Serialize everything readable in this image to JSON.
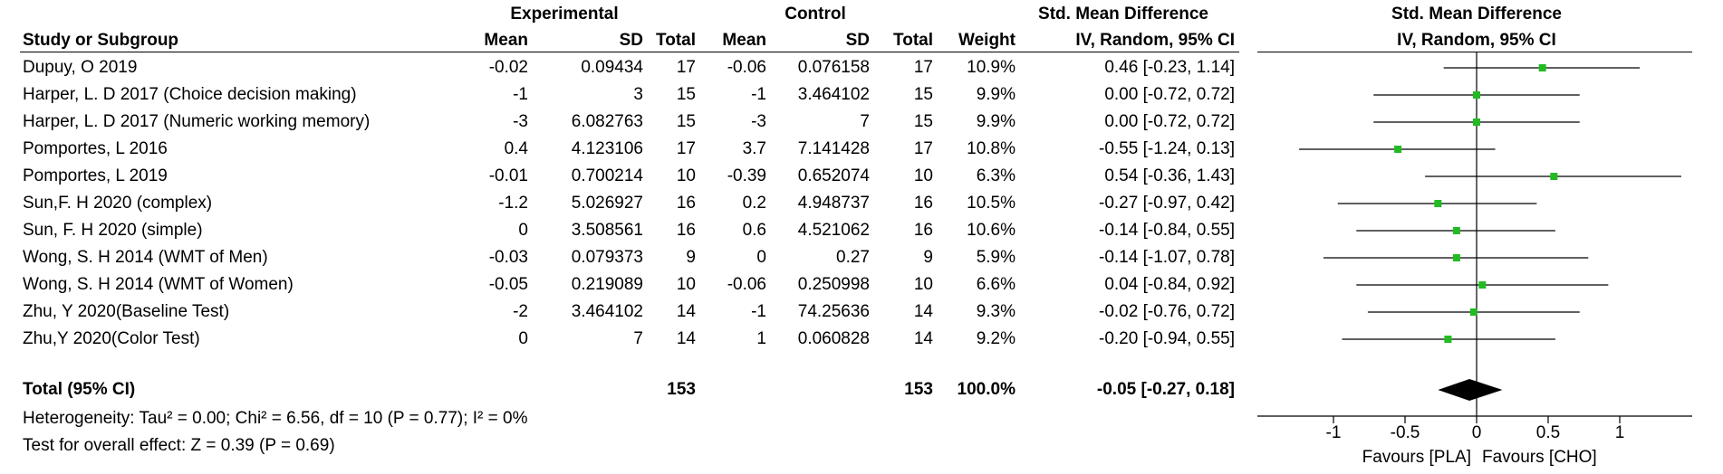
{
  "header": {
    "group_experimental": "Experimental",
    "group_control": "Control",
    "smd_title_left": "Std. Mean Difference",
    "smd_title_right": "Std. Mean Difference",
    "col_study": "Study or Subgroup",
    "col_exp_mean": "Mean",
    "col_exp_sd": "SD",
    "col_exp_total": "Total",
    "col_ctl_mean": "Mean",
    "col_ctl_sd": "SD",
    "col_ctl_total": "Total",
    "col_weight": "Weight",
    "col_ci_left": "IV, Random, 95% CI",
    "col_ci_right": "IV, Random, 95% CI"
  },
  "studies": [
    {
      "name": "Dupuy, O 2019",
      "exp_mean": "-0.02",
      "exp_sd": "0.09434",
      "exp_total": "17",
      "ctl_mean": "-0.06",
      "ctl_sd": "0.076158",
      "ctl_total": "17",
      "weight": "10.9%",
      "ci": "0.46 [-0.23, 1.14]"
    },
    {
      "name": "Harper, L. D 2017 (Choice decision making)",
      "exp_mean": "-1",
      "exp_sd": "3",
      "exp_total": "15",
      "ctl_mean": "-1",
      "ctl_sd": "3.464102",
      "ctl_total": "15",
      "weight": "9.9%",
      "ci": "0.00 [-0.72, 0.72]"
    },
    {
      "name": "Harper, L. D 2017 (Numeric working memory)",
      "exp_mean": "-3",
      "exp_sd": "6.082763",
      "exp_total": "15",
      "ctl_mean": "-3",
      "ctl_sd": "7",
      "ctl_total": "15",
      "weight": "9.9%",
      "ci": "0.00 [-0.72, 0.72]"
    },
    {
      "name": "Pomportes, L 2016",
      "exp_mean": "0.4",
      "exp_sd": "4.123106",
      "exp_total": "17",
      "ctl_mean": "3.7",
      "ctl_sd": "7.141428",
      "ctl_total": "17",
      "weight": "10.8%",
      "ci": "-0.55 [-1.24, 0.13]"
    },
    {
      "name": "Pomportes, L 2019",
      "exp_mean": "-0.01",
      "exp_sd": "0.700214",
      "exp_total": "10",
      "ctl_mean": "-0.39",
      "ctl_sd": "0.652074",
      "ctl_total": "10",
      "weight": "6.3%",
      "ci": "0.54 [-0.36, 1.43]"
    },
    {
      "name": "Sun,F. H 2020 (complex)",
      "exp_mean": "-1.2",
      "exp_sd": "5.026927",
      "exp_total": "16",
      "ctl_mean": "0.2",
      "ctl_sd": "4.948737",
      "ctl_total": "16",
      "weight": "10.5%",
      "ci": "-0.27 [-0.97, 0.42]"
    },
    {
      "name": "Sun, F. H 2020 (simple)",
      "exp_mean": "0",
      "exp_sd": "3.508561",
      "exp_total": "16",
      "ctl_mean": "0.6",
      "ctl_sd": "4.521062",
      "ctl_total": "16",
      "weight": "10.6%",
      "ci": "-0.14 [-0.84, 0.55]"
    },
    {
      "name": "Wong, S. H 2014 (WMT of Men)",
      "exp_mean": "-0.03",
      "exp_sd": "0.079373",
      "exp_total": "9",
      "ctl_mean": "0",
      "ctl_sd": "0.27",
      "ctl_total": "9",
      "weight": "5.9%",
      "ci": "-0.14 [-1.07, 0.78]"
    },
    {
      "name": "Wong, S. H 2014 (WMT of Women)",
      "exp_mean": "-0.05",
      "exp_sd": "0.219089",
      "exp_total": "10",
      "ctl_mean": "-0.06",
      "ctl_sd": "0.250998",
      "ctl_total": "10",
      "weight": "6.6%",
      "ci": "0.04 [-0.84, 0.92]"
    },
    {
      "name": "Zhu, Y 2020(Baseline Test)",
      "exp_mean": "-2",
      "exp_sd": "3.464102",
      "exp_total": "14",
      "ctl_mean": "-1",
      "ctl_sd": "74.25636",
      "ctl_total": "14",
      "weight": "9.3%",
      "ci": "-0.02 [-0.76, 0.72]"
    },
    {
      "name": "Zhu,Y 2020(Color Test)",
      "exp_mean": "0",
      "exp_sd": "7",
      "exp_total": "14",
      "ctl_mean": "1",
      "ctl_sd": "0.060828",
      "ctl_total": "14",
      "weight": "9.2%",
      "ci": "-0.20 [-0.94, 0.55]"
    }
  ],
  "total": {
    "label": "Total (95% CI)",
    "exp_total": "153",
    "ctl_total": "153",
    "weight": "100.0%",
    "ci": "-0.05 [-0.27, 0.18]"
  },
  "heterogeneity": "Heterogeneity: Tau² = 0.00; Chi² = 6.56, df = 10 (P = 0.77); I² = 0%",
  "overall_effect": "Test for overall effect: Z = 0.39 (P = 0.69)",
  "colors": {
    "marker": "#22bb22",
    "diamond": "#000000",
    "line": "#000000"
  },
  "chart_data": {
    "type": "scatter",
    "subtype": "forest_plot",
    "xlim": [
      -1.5,
      1.6
    ],
    "xticks": [
      -1,
      -0.5,
      0,
      0.5,
      1
    ],
    "xtick_labels": [
      "-1",
      "-0.5",
      "0",
      "0.5",
      "1"
    ],
    "favours_left": "Favours [PLA]",
    "favours_right": "Favours [CHO]",
    "points": [
      {
        "est": 0.46,
        "lo": -0.23,
        "hi": 1.14
      },
      {
        "est": 0.0,
        "lo": -0.72,
        "hi": 0.72
      },
      {
        "est": 0.0,
        "lo": -0.72,
        "hi": 0.72
      },
      {
        "est": -0.55,
        "lo": -1.24,
        "hi": 0.13
      },
      {
        "est": 0.54,
        "lo": -0.36,
        "hi": 1.43
      },
      {
        "est": -0.27,
        "lo": -0.97,
        "hi": 0.42
      },
      {
        "est": -0.14,
        "lo": -0.84,
        "hi": 0.55
      },
      {
        "est": -0.14,
        "lo": -1.07,
        "hi": 0.78
      },
      {
        "est": 0.04,
        "lo": -0.84,
        "hi": 0.92
      },
      {
        "est": -0.02,
        "lo": -0.76,
        "hi": 0.72
      },
      {
        "est": -0.2,
        "lo": -0.94,
        "hi": 0.55
      }
    ],
    "pooled": {
      "est": -0.05,
      "lo": -0.27,
      "hi": 0.18
    }
  }
}
